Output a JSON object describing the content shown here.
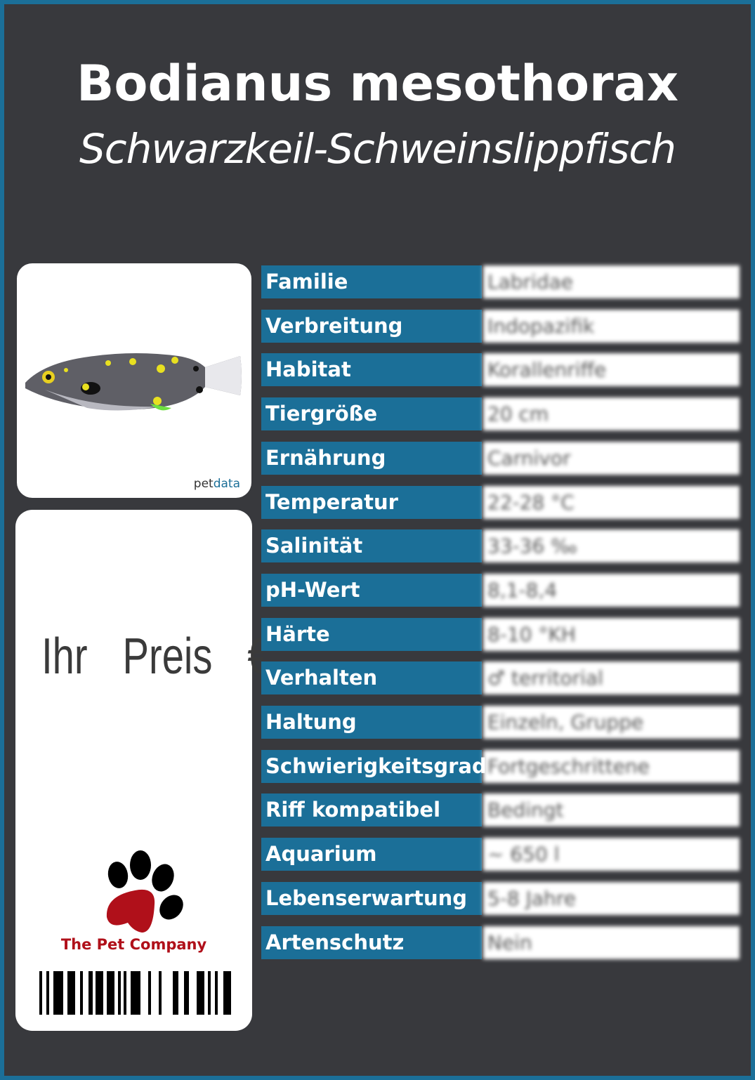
{
  "header": {
    "title": "Bodianus mesothorax",
    "subtitle": "Schwarzkeil-Schweinslippfisch"
  },
  "photo": {
    "subject": "fish-photo",
    "credit_prefix": "pet",
    "credit_suffix": "data"
  },
  "price_card": {
    "price_label": "Ihr  Preis  €",
    "company": "The Pet Company",
    "logo": "paw-icon"
  },
  "colors": {
    "border": "#1b6f98",
    "background": "#38393d",
    "label_background": "#1b6f98",
    "company_red": "#b0101a"
  },
  "facts": [
    {
      "label": "Familie",
      "value": "Labridae"
    },
    {
      "label": "Verbreitung",
      "value": "Indopazifik"
    },
    {
      "label": "Habitat",
      "value": "Korallenriffe"
    },
    {
      "label": "Tiergröße",
      "value": "20 cm"
    },
    {
      "label": "Ernährung",
      "value": "Carnivor"
    },
    {
      "label": "Temperatur",
      "value": "22-28 °C"
    },
    {
      "label": "Salinität",
      "value": "33-36 ‰"
    },
    {
      "label": "pH-Wert",
      "value": "8,1-8,4"
    },
    {
      "label": "Härte",
      "value": "8-10 °KH"
    },
    {
      "label": "Verhalten",
      "value": "♂ territorial"
    },
    {
      "label": "Haltung",
      "value": "Einzeln, Gruppe"
    },
    {
      "label": "Schwierigkeitsgrad",
      "value": "Fortgeschrittene"
    },
    {
      "label": "Riff kompatibel",
      "value": "Bedingt"
    },
    {
      "label": "Aquarium",
      "value": "~ 650 l"
    },
    {
      "label": "Lebenserwartung",
      "value": "5-8 Jahre"
    },
    {
      "label": "Artenschutz",
      "value": "Nein"
    }
  ]
}
